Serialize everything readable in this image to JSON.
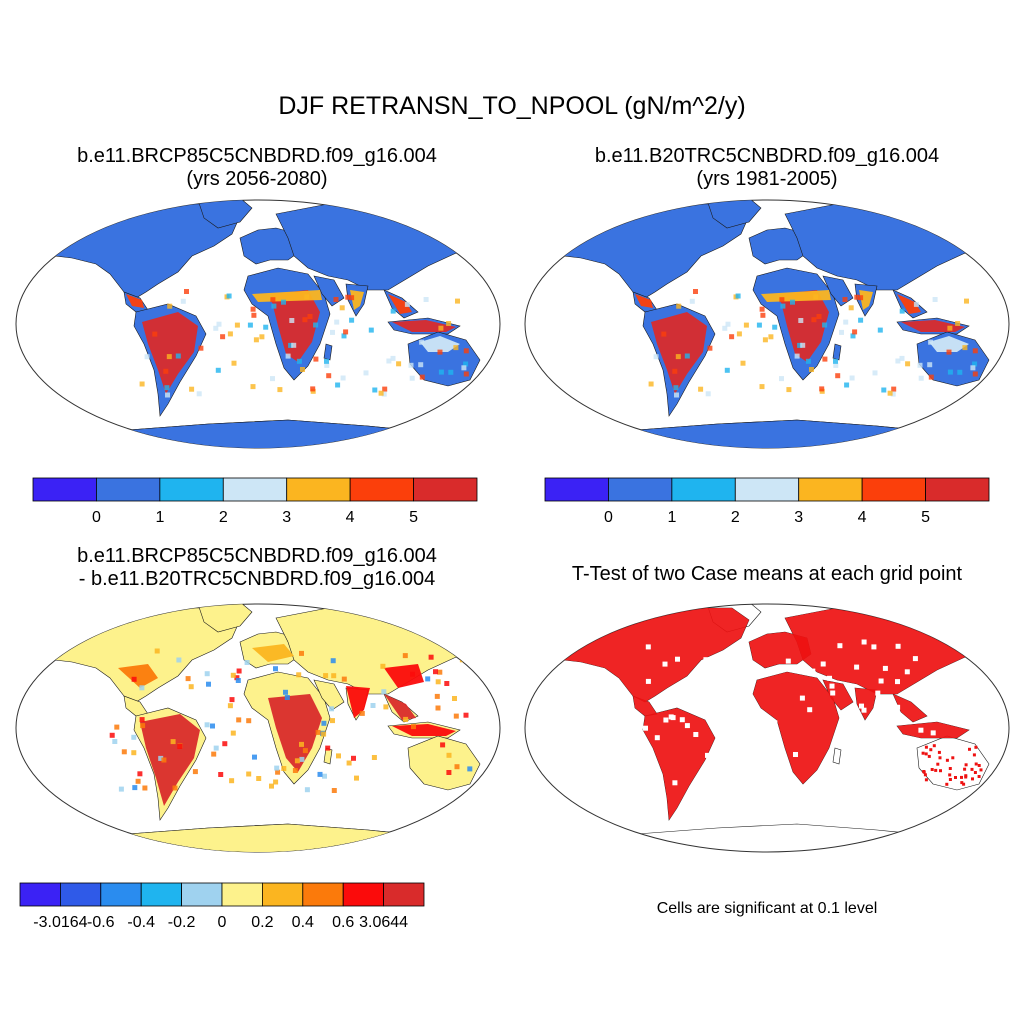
{
  "main_title": "DJF RETRANSN_TO_NPOOL (gN/m^2/y)",
  "colors": {
    "land_blue": "#3a73e0",
    "ocean": "#ffffff",
    "coast": "#1a1a1a",
    "diff_background": "#fdf28c",
    "significant": "#ee1111"
  },
  "panels": [
    {
      "id": "case",
      "title_line1": "b.e11.BRCP85C5CNBDRD.f09_g16.004",
      "title_line2": "(yrs 2056-2080)"
    },
    {
      "id": "control",
      "title_line1": "b.e11.B20TRC5CNBDRD.f09_g16.004",
      "title_line2": "(yrs 1981-2005)"
    },
    {
      "id": "difference",
      "title_line1": "b.e11.BRCP85C5CNBDRD.f09_g16.004",
      "title_line2": "- b.e11.B20TRC5CNBDRD.f09_g16.004"
    },
    {
      "id": "ttest",
      "title_line1": "T-Test of two Case means at each grid point",
      "note": "Cells are significant at 0.1 level"
    }
  ],
  "colorbar_levels": {
    "colors": [
      "#3b22f5",
      "#3a73e0",
      "#1fb4ef",
      "#cde6f6",
      "#fbb520",
      "#fb3f0b",
      "#d92b2b"
    ],
    "labels": [
      "0",
      "1",
      "2",
      "3",
      "4",
      "5"
    ]
  },
  "colorbar_diff": {
    "colors": [
      "#3b22f5",
      "#2f5ae8",
      "#2a8cef",
      "#1fb4ef",
      "#9fd2ef",
      "#fdf28c",
      "#fbb520",
      "#fb7a0b",
      "#fb0b0b",
      "#d92b2b"
    ],
    "labels": [
      "-3.0164",
      "-0.6",
      "-0.4",
      "-0.2",
      "0",
      "0.2",
      "0.4",
      "0.6",
      "3.0644"
    ]
  }
}
